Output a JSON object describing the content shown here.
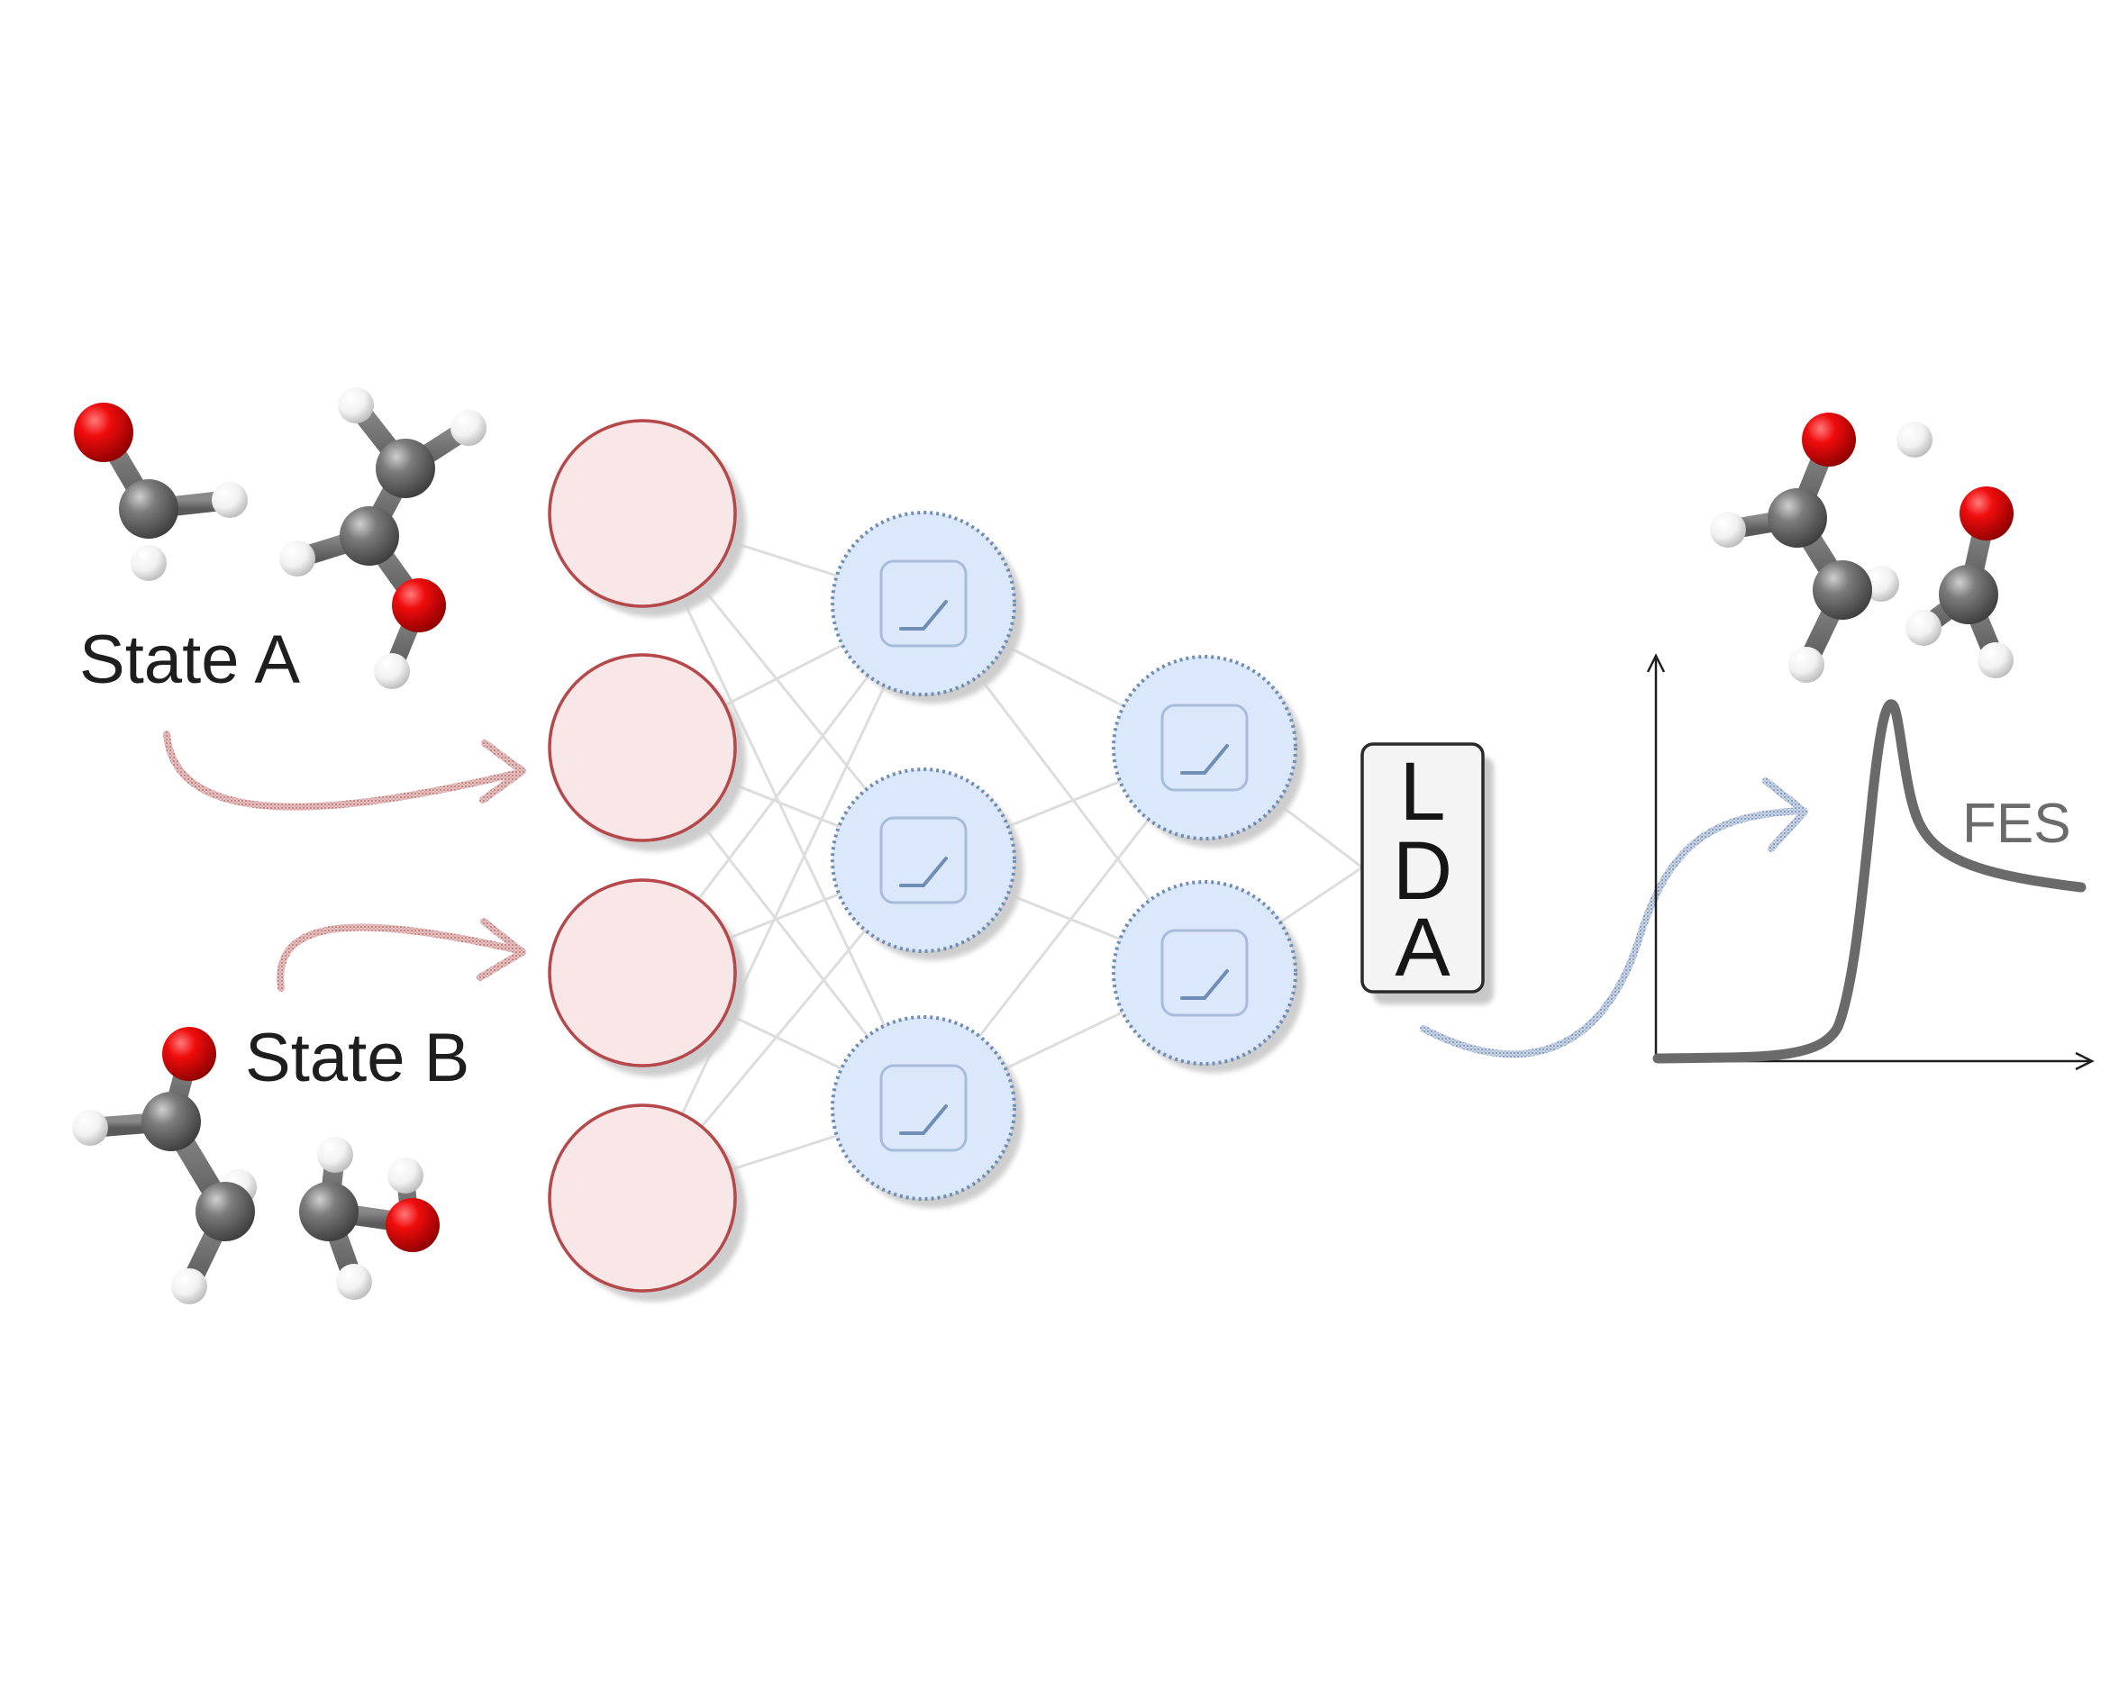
{
  "labels": {
    "state_a": "State A",
    "state_b": "State B",
    "lda_letters": [
      "L",
      "D",
      "A"
    ],
    "fes": "FES"
  },
  "network": {
    "input_nodes": 4,
    "hidden_layer_1_nodes": 3,
    "hidden_layer_2_nodes": 2,
    "output_block": "LDA",
    "activation_icon": "relu-icon"
  },
  "colors": {
    "input_fill": "#f8e7e6",
    "input_stroke": "#b5484a",
    "hidden_fill": "#dbe8fb",
    "hidden_stroke": "#6f8db5",
    "red_arrow": "#c9898a",
    "blue_arrow": "#8da3c6",
    "edge": "#dddddd",
    "oxygen": "#e00000",
    "carbon": "#6f6f6f",
    "hydrogen": "#f2f2f2",
    "fes_curve": "#6a6a6a"
  }
}
